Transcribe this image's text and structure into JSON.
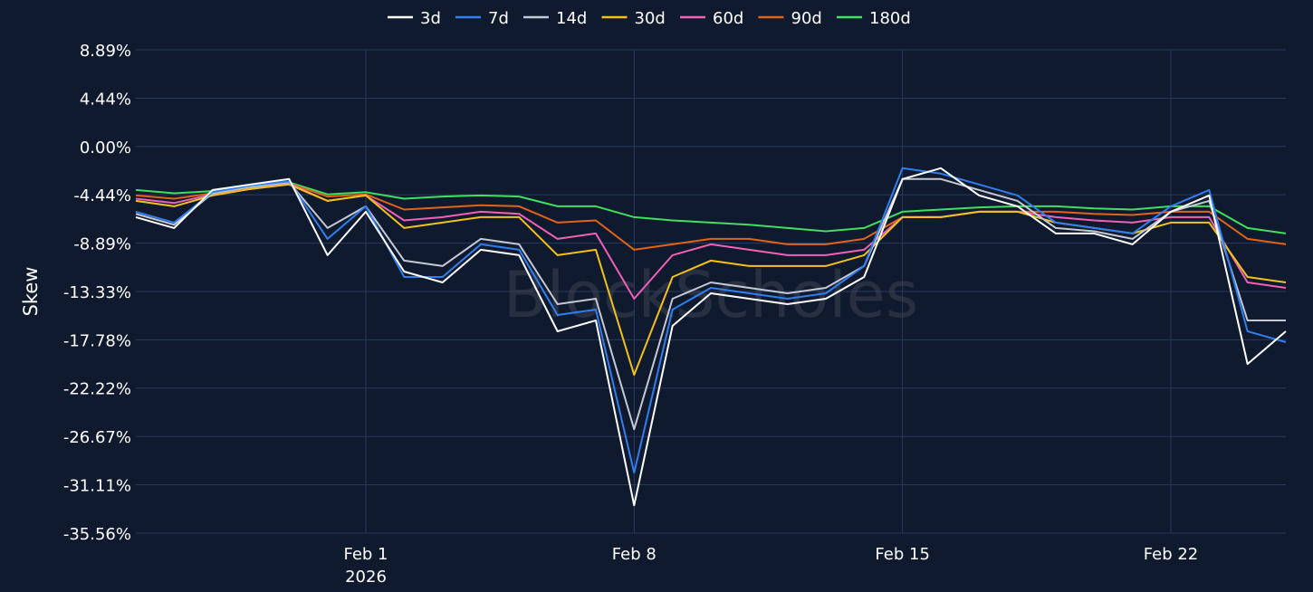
{
  "chart_data": {
    "type": "line",
    "watermark": "BlockScholes",
    "ylabel": "Skew",
    "y_unit": "%",
    "ylim": [
      -35.56,
      8.89
    ],
    "y_ticks": [
      {
        "value": 8.89,
        "label": "8.89%"
      },
      {
        "value": 4.44,
        "label": "4.44%"
      },
      {
        "value": 0.0,
        "label": "0.00%"
      },
      {
        "value": -4.44,
        "label": "-4.44%"
      },
      {
        "value": -8.89,
        "label": "-8.89%"
      },
      {
        "value": -13.33,
        "label": "-13.33%"
      },
      {
        "value": -17.78,
        "label": "-17.78%"
      },
      {
        "value": -22.22,
        "label": "-22.22%"
      },
      {
        "value": -26.67,
        "label": "-26.67%"
      },
      {
        "value": -31.11,
        "label": "-31.11%"
      },
      {
        "value": -35.56,
        "label": "-35.56%"
      }
    ],
    "xlim": [
      "2026-01-26",
      "2026-02-25"
    ],
    "x_ticks": [
      {
        "date": "2026-02-01",
        "label": "Feb 1",
        "sublabel": "2026"
      },
      {
        "date": "2026-02-08",
        "label": "Feb 8",
        "sublabel": ""
      },
      {
        "date": "2026-02-15",
        "label": "Feb 15",
        "sublabel": ""
      },
      {
        "date": "2026-02-22",
        "label": "Feb 22",
        "sublabel": ""
      }
    ],
    "grid": true,
    "legend_position": "top-center",
    "x": [
      "2026-01-26",
      "2026-01-27",
      "2026-01-28",
      "2026-01-29",
      "2026-01-30",
      "2026-01-31",
      "2026-02-01",
      "2026-02-02",
      "2026-02-03",
      "2026-02-04",
      "2026-02-05",
      "2026-02-06",
      "2026-02-07",
      "2026-02-08",
      "2026-02-09",
      "2026-02-10",
      "2026-02-11",
      "2026-02-12",
      "2026-02-13",
      "2026-02-14",
      "2026-02-15",
      "2026-02-16",
      "2026-02-17",
      "2026-02-18",
      "2026-02-19",
      "2026-02-20",
      "2026-02-21",
      "2026-02-22",
      "2026-02-23",
      "2026-02-24",
      "2026-02-25"
    ],
    "series": [
      {
        "name": "3d",
        "color": "#ffffff",
        "values": [
          -6.5,
          -7.5,
          -4.0,
          -3.5,
          -3.0,
          -10.0,
          -6.0,
          -11.5,
          -12.5,
          -9.5,
          -10.0,
          -17.0,
          -16.0,
          -33.0,
          -16.5,
          -13.5,
          -14.0,
          -14.5,
          -14.0,
          -12.0,
          -3.0,
          -2.0,
          -4.5,
          -5.5,
          -8.0,
          -8.0,
          -9.0,
          -6.0,
          -4.5,
          -20.0,
          -17.0
        ]
      },
      {
        "name": "7d",
        "color": "#2f7ff0",
        "values": [
          -6.0,
          -7.0,
          -4.2,
          -3.6,
          -3.2,
          -8.5,
          -5.5,
          -12.0,
          -12.0,
          -9.0,
          -9.5,
          -15.5,
          -15.0,
          -30.0,
          -15.0,
          -13.0,
          -13.5,
          -14.0,
          -13.5,
          -11.0,
          -2.0,
          -2.5,
          -3.5,
          -4.5,
          -7.0,
          -7.5,
          -8.0,
          -5.5,
          -4.0,
          -17.0,
          -18.0
        ]
      },
      {
        "name": "14d",
        "color": "#c4c9d4",
        "values": [
          -6.2,
          -7.2,
          -4.3,
          -3.7,
          -3.3,
          -7.5,
          -5.5,
          -10.5,
          -11.0,
          -8.5,
          -9.0,
          -14.5,
          -14.0,
          -26.0,
          -14.0,
          -12.5,
          -13.0,
          -13.5,
          -13.0,
          -11.0,
          -3.0,
          -3.0,
          -4.0,
          -5.0,
          -7.5,
          -7.8,
          -8.5,
          -6.0,
          -5.0,
          -16.0,
          -16.0
        ]
      },
      {
        "name": "30d",
        "color": "#f2c21b",
        "values": [
          -5.0,
          -5.5,
          -4.5,
          -3.9,
          -3.5,
          -5.0,
          -4.5,
          -7.5,
          -7.0,
          -6.5,
          -6.5,
          -10.0,
          -9.5,
          -21.0,
          -12.0,
          -10.5,
          -11.0,
          -11.0,
          -11.0,
          -10.0,
          -6.5,
          -6.5,
          -6.0,
          -6.0,
          -7.0,
          -7.5,
          -8.0,
          -7.0,
          -7.0,
          -12.0,
          -12.5
        ]
      },
      {
        "name": "60d",
        "color": "#f061b8",
        "values": [
          -4.8,
          -5.2,
          -4.4,
          -3.9,
          -3.4,
          -5.0,
          -4.5,
          -6.8,
          -6.5,
          -6.0,
          -6.2,
          -8.5,
          -8.0,
          -14.0,
          -10.0,
          -9.0,
          -9.5,
          -10.0,
          -10.0,
          -9.5,
          -6.5,
          -6.5,
          -6.0,
          -6.0,
          -6.5,
          -6.8,
          -7.0,
          -6.5,
          -6.5,
          -12.5,
          -13.0
        ]
      },
      {
        "name": "90d",
        "color": "#e06418",
        "values": [
          -4.5,
          -4.8,
          -4.3,
          -3.9,
          -3.4,
          -4.6,
          -4.4,
          -5.8,
          -5.6,
          -5.4,
          -5.5,
          -7.0,
          -6.8,
          -9.5,
          -9.0,
          -8.5,
          -8.5,
          -9.0,
          -9.0,
          -8.5,
          -6.5,
          -6.5,
          -6.0,
          -6.0,
          -6.0,
          -6.2,
          -6.3,
          -6.0,
          -6.0,
          -8.5,
          -9.0
        ]
      },
      {
        "name": "180d",
        "color": "#3ee05d",
        "values": [
          -4.0,
          -4.3,
          -4.1,
          -3.8,
          -3.3,
          -4.4,
          -4.2,
          -4.8,
          -4.6,
          -4.5,
          -4.6,
          -5.5,
          -5.5,
          -6.5,
          -6.8,
          -7.0,
          -7.2,
          -7.5,
          -7.8,
          -7.5,
          -6.0,
          -5.8,
          -5.6,
          -5.5,
          -5.5,
          -5.7,
          -5.8,
          -5.5,
          -5.5,
          -7.5,
          -8.0
        ]
      }
    ]
  }
}
